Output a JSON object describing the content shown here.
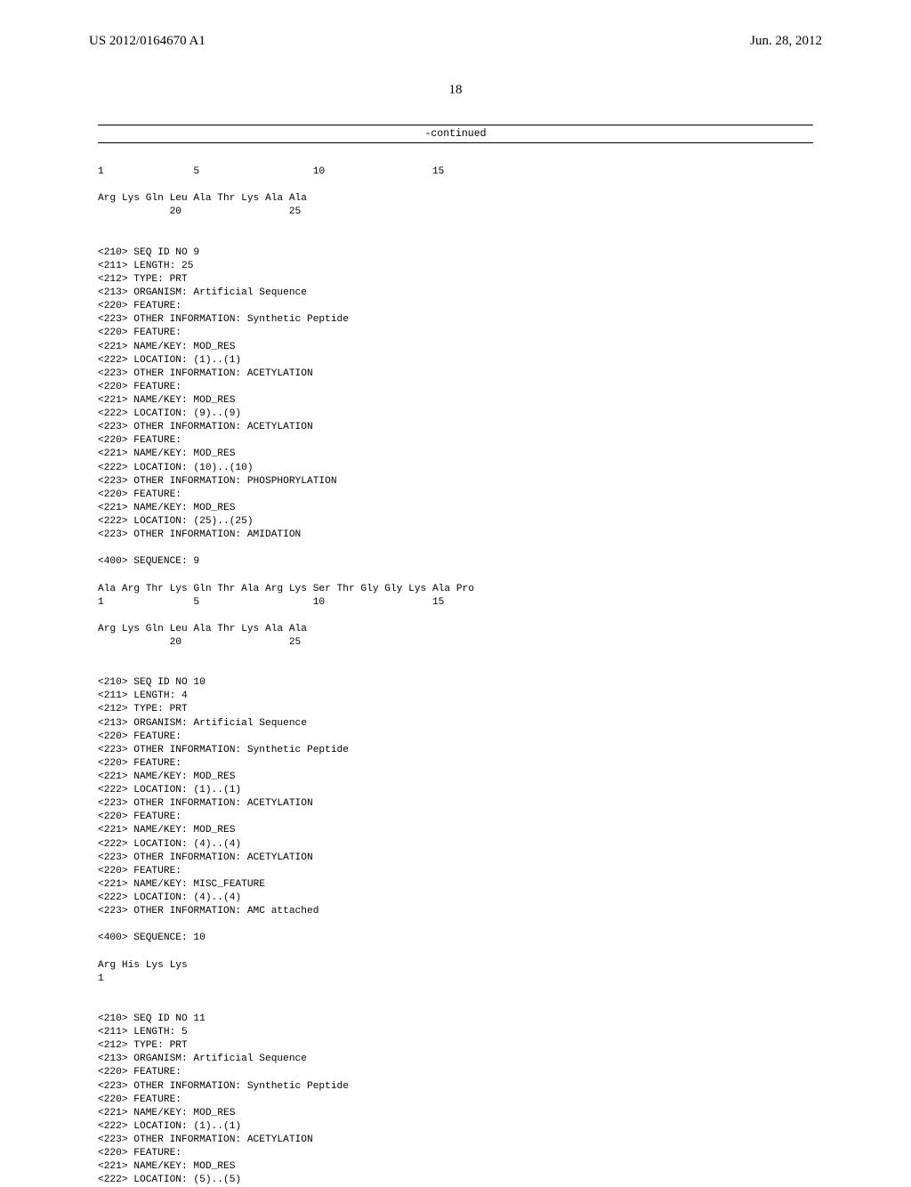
{
  "header": {
    "pub_number": "US 2012/0164670 A1",
    "pub_date": "Jun. 28, 2012"
  },
  "page_number": "18",
  "continued_label": "-continued",
  "seq": {
    "line_pos_1_16": "1               5                   10                  15",
    "pep_block1_line1": "Arg Lys Gln Leu Ala Thr Lys Ala Ala",
    "pep_block1_pos": "            20                  25",
    "seq9": {
      "l1": "<210> SEQ ID NO 9",
      "l2": "<211> LENGTH: 25",
      "l3": "<212> TYPE: PRT",
      "l4": "<213> ORGANISM: Artificial Sequence",
      "l5": "<220> FEATURE:",
      "l6": "<223> OTHER INFORMATION: Synthetic Peptide",
      "l7": "<220> FEATURE:",
      "l8": "<221> NAME/KEY: MOD_RES",
      "l9": "<222> LOCATION: (1)..(1)",
      "l10": "<223> OTHER INFORMATION: ACETYLATION",
      "l11": "<220> FEATURE:",
      "l12": "<221> NAME/KEY: MOD_RES",
      "l13": "<222> LOCATION: (9)..(9)",
      "l14": "<223> OTHER INFORMATION: ACETYLATION",
      "l15": "<220> FEATURE:",
      "l16": "<221> NAME/KEY: MOD_RES",
      "l17": "<222> LOCATION: (10)..(10)",
      "l18": "<223> OTHER INFORMATION: PHOSPHORYLATION",
      "l19": "<220> FEATURE:",
      "l20": "<221> NAME/KEY: MOD_RES",
      "l21": "<222> LOCATION: (25)..(25)",
      "l22": "<223> OTHER INFORMATION: AMIDATION",
      "seq": "<400> SEQUENCE: 9",
      "pep1": "Ala Arg Thr Lys Gln Thr Ala Arg Lys Ser Thr Gly Gly Lys Ala Pro",
      "pos1": "1               5                   10                  15",
      "pep2": "Arg Lys Gln Leu Ala Thr Lys Ala Ala",
      "pos2": "            20                  25"
    },
    "seq10": {
      "l1": "<210> SEQ ID NO 10",
      "l2": "<211> LENGTH: 4",
      "l3": "<212> TYPE: PRT",
      "l4": "<213> ORGANISM: Artificial Sequence",
      "l5": "<220> FEATURE:",
      "l6": "<223> OTHER INFORMATION: Synthetic Peptide",
      "l7": "<220> FEATURE:",
      "l8": "<221> NAME/KEY: MOD_RES",
      "l9": "<222> LOCATION: (1)..(1)",
      "l10": "<223> OTHER INFORMATION: ACETYLATION",
      "l11": "<220> FEATURE:",
      "l12": "<221> NAME/KEY: MOD_RES",
      "l13": "<222> LOCATION: (4)..(4)",
      "l14": "<223> OTHER INFORMATION: ACETYLATION",
      "l15": "<220> FEATURE:",
      "l16": "<221> NAME/KEY: MISC_FEATURE",
      "l17": "<222> LOCATION: (4)..(4)",
      "l18": "<223> OTHER INFORMATION: AMC attached",
      "seq": "<400> SEQUENCE: 10",
      "pep1": "Arg His Lys Lys",
      "pos1": "1"
    },
    "seq11": {
      "l1": "<210> SEQ ID NO 11",
      "l2": "<211> LENGTH: 5",
      "l3": "<212> TYPE: PRT",
      "l4": "<213> ORGANISM: Artificial Sequence",
      "l5": "<220> FEATURE:",
      "l6": "<223> OTHER INFORMATION: Synthetic Peptide",
      "l7": "<220> FEATURE:",
      "l8": "<221> NAME/KEY: MOD_RES",
      "l9": "<222> LOCATION: (1)..(1)",
      "l10": "<223> OTHER INFORMATION: ACETYLATION",
      "l11": "<220> FEATURE:",
      "l12": "<221> NAME/KEY: MOD_RES",
      "l13": "<222> LOCATION: (5)..(5)"
    }
  }
}
